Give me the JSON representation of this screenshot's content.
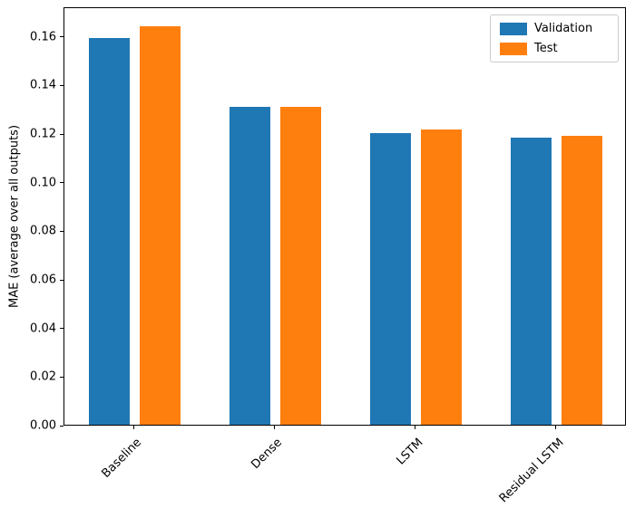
{
  "chart_data": {
    "type": "bar",
    "categories": [
      "Baseline",
      "Dense",
      "LSTM",
      "Residual LSTM"
    ],
    "series": [
      {
        "name": "Validation",
        "color": "#1f77b4",
        "values": [
          0.159,
          0.131,
          0.12,
          0.118
        ]
      },
      {
        "name": "Test",
        "color": "#ff7f0e",
        "values": [
          0.164,
          0.131,
          0.1215,
          0.119
        ]
      }
    ],
    "title": "",
    "xlabel": "",
    "ylabel": "MAE (average over all outputs)",
    "ylim": [
      0,
      0.1722
    ],
    "yticks": [
      0.0,
      0.02,
      0.04,
      0.06,
      0.08,
      0.1,
      0.12,
      0.14,
      0.16
    ],
    "legend_position": "upper right",
    "grid": false,
    "background": "#ffffff",
    "axis_color": "#000000"
  }
}
